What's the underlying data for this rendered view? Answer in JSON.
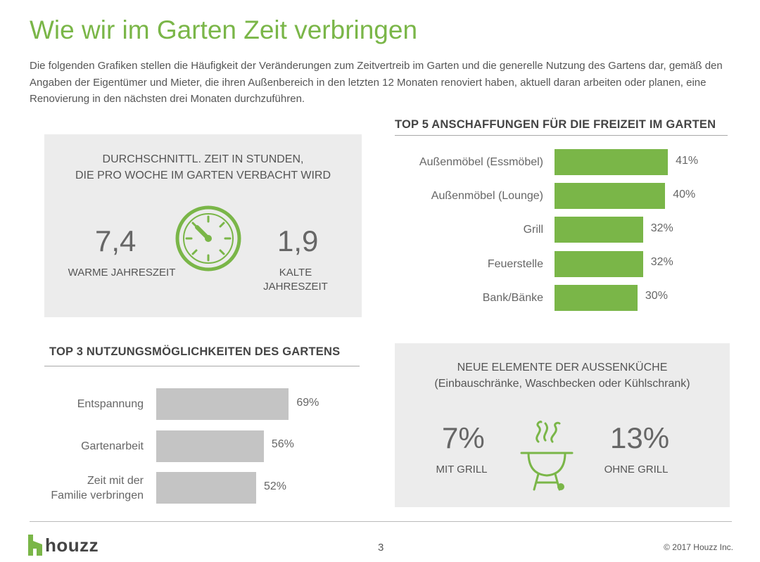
{
  "page": {
    "title": "Wie wir im Garten Zeit verbringen",
    "intro": "Die folgenden Grafiken stellen die Häufigkeit der Veränderungen zum Zeitvertreib im Garten und die generelle Nutzung des Gartens dar, gemäß den Angaben der Eigentümer und Mieter, die ihren Außenbereich in den letzten 12 Monaten renoviert haben, aktuell daran arbeiten oder planen, eine Renovierung in den nächsten drei Monaten durchzuführen."
  },
  "time_panel": {
    "title": "DURCHSCHNITTL. ZEIT IN STUNDEN,\nDIE PRO WOCHE IM GARTEN VERBACHT WIRD",
    "warm_value": "7,4",
    "warm_label": "WARME JAHRESZEIT",
    "cold_value": "1,9",
    "cold_label": "KALTE\nJAHRESZEIT",
    "icon": "clock-icon"
  },
  "kitchen_panel": {
    "title": "NEUE ELEMENTE DER AUSSENKÜCHE\n(Einbauschränke, Waschbecken oder Kühlschrank)",
    "with_value": "7%",
    "with_label": "MIT GRILL",
    "without_value": "13%",
    "without_label": "OHNE GRILL",
    "icon": "grill-icon"
  },
  "colors": {
    "green": "#7ab648",
    "gray_bar": "#c4c4c4",
    "panel_bg": "#ececec"
  },
  "footer": {
    "logo": "houzz",
    "page_number": "3",
    "copyright": "© 2017 Houzz Inc."
  },
  "chart_data": [
    {
      "type": "bar",
      "orientation": "horizontal",
      "title": "TOP 5 ANSCHAFFUNGEN FÜR DIE FREIZEIT IM GARTEN",
      "categories": [
        "Außenmöbel (Essmöbel)",
        "Außenmöbel (Lounge)",
        "Grill",
        "Feuerstelle",
        "Bank/Bänke"
      ],
      "values": [
        41,
        40,
        32,
        32,
        30
      ],
      "value_labels": [
        "41%",
        "40%",
        "32%",
        "32%",
        "30%"
      ],
      "unit": "%",
      "color": "#7ab648"
    },
    {
      "type": "bar",
      "orientation": "horizontal",
      "title": "TOP 3 NUTZUNGSMÖGLICHKEITEN DES GARTENS",
      "categories": [
        "Entspannung",
        "Gartenarbeit",
        "Zeit mit der\nFamilie verbringen"
      ],
      "values": [
        69,
        56,
        52
      ],
      "value_labels": [
        "69%",
        "56%",
        "52%"
      ],
      "unit": "%",
      "color": "#c4c4c4"
    }
  ]
}
